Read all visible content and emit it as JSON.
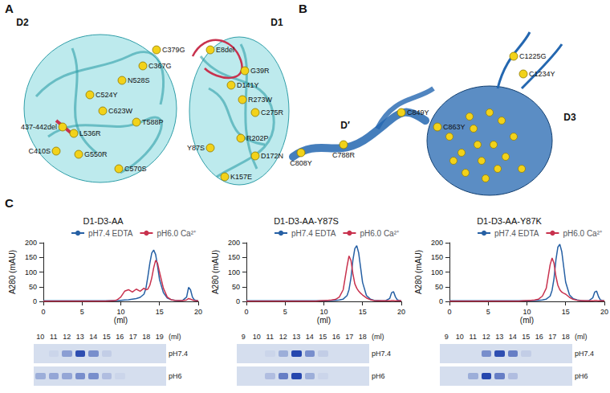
{
  "panels": {
    "A": {
      "label": "A",
      "domains": [
        "D2",
        "D1"
      ],
      "mutations": [
        "C379G",
        "C367G",
        "N528S",
        "C524Y",
        "C623W",
        "T588P",
        "437-442del",
        "L536R",
        "C410S",
        "G550R",
        "C570S",
        "E8del",
        "G39R",
        "D141Y",
        "R273W",
        "C275R",
        "R202P",
        "Y87S",
        "D172N",
        "K157E"
      ]
    },
    "B": {
      "label": "B",
      "domains": [
        "D′",
        "D3"
      ],
      "mutations": [
        "C808Y",
        "C788R",
        "C849Y",
        "C863Y",
        "C1225G",
        "C1234Y"
      ]
    },
    "C": {
      "label": "C"
    }
  },
  "chart_data": [
    {
      "type": "line",
      "title": "D1-D3-AA",
      "x_label": "(ml)",
      "y_label": "A280 (mAU)",
      "x": [
        0,
        1,
        2,
        3,
        4,
        5,
        6,
        7,
        8,
        9,
        9.5,
        10,
        10.5,
        11,
        11.5,
        12,
        12.5,
        13,
        13.25,
        13.5,
        13.75,
        14,
        14.25,
        14.5,
        14.75,
        15,
        15.5,
        16,
        16.5,
        17,
        17.5,
        18,
        18.5,
        18.75,
        19,
        19.25,
        19.5,
        20
      ],
      "xlim": [
        0,
        20
      ],
      "xticks": [
        0,
        5,
        10,
        15,
        20
      ],
      "ylim": [
        0,
        200
      ],
      "yticks": [
        0,
        50,
        100,
        150,
        200
      ],
      "grid": false,
      "legend": "upper right",
      "series": [
        {
          "name": "pH7.4 EDTA",
          "color": "#2660a4",
          "values": [
            2,
            2,
            2,
            2,
            2,
            2,
            2,
            2,
            2,
            3,
            3,
            4,
            5,
            6,
            8,
            10,
            14,
            25,
            45,
            85,
            130,
            165,
            175,
            160,
            120,
            75,
            30,
            12,
            6,
            4,
            3,
            4,
            15,
            48,
            40,
            15,
            5,
            2
          ]
        },
        {
          "name": "pH6.0 Ca²⁺",
          "color": "#c8324e",
          "values": [
            1,
            1,
            1,
            1,
            1,
            1,
            1,
            1,
            1,
            2,
            5,
            15,
            35,
            40,
            32,
            42,
            35,
            45,
            40,
            42,
            55,
            80,
            115,
            140,
            130,
            100,
            45,
            15,
            6,
            4,
            3,
            3,
            5,
            10,
            8,
            5,
            3,
            2
          ]
        }
      ],
      "gel": {
        "fractions": [
          10,
          11,
          12,
          13,
          14,
          15,
          16,
          17,
          18,
          19
        ],
        "unit": "(ml)",
        "rows": [
          {
            "name": "pH7.4",
            "intensity": [
              0,
              0.05,
              0.4,
              0.9,
              0.5,
              0.1,
              0,
              0,
              0,
              0
            ]
          },
          {
            "name": "pH6",
            "intensity": [
              0.3,
              0.35,
              0.35,
              0.5,
              0.5,
              0.2,
              0.05,
              0,
              0,
              0
            ]
          }
        ]
      }
    },
    {
      "type": "line",
      "title": "D1-D3-AA-Y87S",
      "x_label": "(ml)",
      "y_label": "A280 (mAU)",
      "x": [
        0,
        1,
        2,
        3,
        4,
        5,
        6,
        7,
        8,
        9,
        9.5,
        10,
        10.5,
        11,
        11.5,
        12,
        12.5,
        13,
        13.25,
        13.5,
        13.75,
        14,
        14.25,
        14.5,
        14.75,
        15,
        15.5,
        16,
        16.5,
        17,
        17.5,
        18,
        18.5,
        18.75,
        19,
        19.25,
        19.5,
        20
      ],
      "xlim": [
        0,
        20
      ],
      "xticks": [
        0,
        5,
        10,
        15,
        20
      ],
      "ylim": [
        0,
        200
      ],
      "yticks": [
        0,
        50,
        100,
        150,
        200
      ],
      "grid": false,
      "legend": "upper right",
      "series": [
        {
          "name": "pH7.4 EDTA",
          "color": "#2660a4",
          "values": [
            2,
            2,
            2,
            2,
            2,
            2,
            2,
            2,
            2,
            2,
            2,
            2,
            3,
            3,
            4,
            5,
            8,
            20,
            40,
            80,
            140,
            180,
            190,
            165,
            115,
            65,
            20,
            8,
            4,
            3,
            2,
            3,
            10,
            30,
            33,
            15,
            5,
            2
          ]
        },
        {
          "name": "pH6.0 Ca²⁺",
          "color": "#c8324e",
          "values": [
            1,
            1,
            1,
            1,
            1,
            1,
            1,
            1,
            1,
            1,
            2,
            3,
            4,
            5,
            7,
            15,
            40,
            120,
            155,
            140,
            95,
            60,
            45,
            35,
            28,
            22,
            12,
            6,
            3,
            2,
            2,
            2,
            2,
            3,
            3,
            2,
            2,
            2
          ]
        }
      ],
      "gel": {
        "fractions": [
          9,
          10,
          11,
          12,
          13,
          14,
          15,
          16,
          17,
          18
        ],
        "unit": "(ml)",
        "rows": [
          {
            "name": "pH7.4",
            "intensity": [
              0,
              0,
              0.05,
              0.3,
              0.95,
              0.5,
              0.1,
              0,
              0,
              0
            ]
          },
          {
            "name": "pH6",
            "intensity": [
              0,
              0,
              0.2,
              0.6,
              0.95,
              0.3,
              0.05,
              0,
              0,
              0
            ]
          }
        ]
      }
    },
    {
      "type": "line",
      "title": "D1-D3-AA-Y87K",
      "x_label": "(ml)",
      "y_label": "A280 (mAU)",
      "x": [
        0,
        1,
        2,
        3,
        4,
        5,
        6,
        7,
        8,
        9,
        9.5,
        10,
        10.5,
        11,
        11.5,
        12,
        12.5,
        13,
        13.25,
        13.5,
        13.75,
        14,
        14.25,
        14.5,
        14.75,
        15,
        15.5,
        16,
        16.5,
        17,
        17.5,
        18,
        18.5,
        18.75,
        19,
        19.25,
        19.5,
        20
      ],
      "xlim": [
        0,
        20
      ],
      "xticks": [
        0,
        5,
        10,
        15,
        20
      ],
      "ylim": [
        0,
        200
      ],
      "yticks": [
        0,
        50,
        100,
        150,
        200
      ],
      "grid": false,
      "legend": "upper right",
      "series": [
        {
          "name": "pH7.4 EDTA",
          "color": "#2660a4",
          "values": [
            2,
            2,
            2,
            2,
            2,
            2,
            2,
            2,
            2,
            2,
            2,
            2,
            3,
            3,
            4,
            5,
            8,
            18,
            38,
            78,
            142,
            185,
            195,
            170,
            118,
            66,
            22,
            9,
            5,
            3,
            2,
            3,
            12,
            32,
            35,
            16,
            5,
            2
          ]
        },
        {
          "name": "pH6.0 Ca²⁺",
          "color": "#c8324e",
          "values": [
            1,
            1,
            1,
            1,
            1,
            1,
            1,
            1,
            1,
            1,
            2,
            3,
            4,
            5,
            8,
            18,
            45,
            125,
            148,
            130,
            85,
            55,
            40,
            32,
            28,
            25,
            14,
            7,
            4,
            3,
            2,
            2,
            2,
            3,
            3,
            2,
            2,
            2
          ]
        }
      ],
      "gel": {
        "fractions": [
          9,
          10,
          11,
          12,
          13,
          14,
          15,
          16,
          17,
          18
        ],
        "unit": "(ml)",
        "rows": [
          {
            "name": "pH7.4",
            "intensity": [
              0,
              0,
              0,
              0.5,
              0.9,
              0.6,
              0.1,
              0,
              0,
              0
            ]
          },
          {
            "name": "pH6",
            "intensity": [
              0,
              0,
              0.3,
              0.95,
              0.6,
              0.2,
              0,
              0,
              0,
              0
            ]
          }
        ]
      }
    }
  ]
}
